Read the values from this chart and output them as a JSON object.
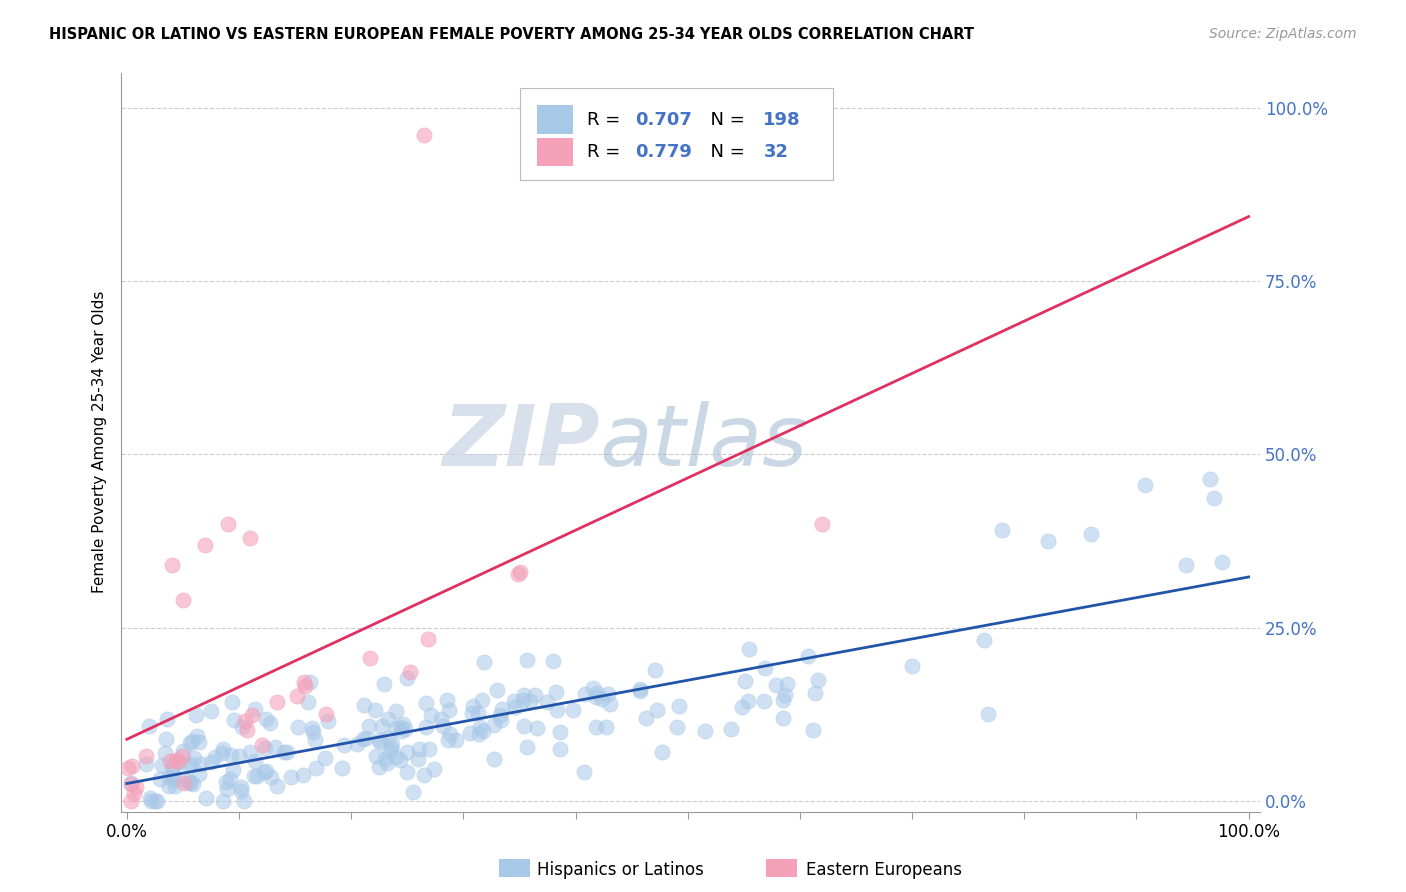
{
  "title": "HISPANIC OR LATINO VS EASTERN EUROPEAN FEMALE POVERTY AMONG 25-34 YEAR OLDS CORRELATION CHART",
  "source": "Source: ZipAtlas.com",
  "ylabel": "Female Poverty Among 25-34 Year Olds",
  "watermark_zip": "ZIP",
  "watermark_atlas": "atlas",
  "blue_R": 0.707,
  "blue_N": 198,
  "pink_R": 0.779,
  "pink_N": 32,
  "blue_color": "#a8c8e8",
  "pink_color": "#f4a0b8",
  "blue_line_color": "#2255aa",
  "pink_line_color": "#e03060",
  "axis_label_color": "#4472c4",
  "ytick_labels": [
    "0.0%",
    "25.0%",
    "50.0%",
    "75.0%",
    "100.0%"
  ],
  "ytick_values": [
    0.0,
    0.25,
    0.5,
    0.75,
    1.0
  ],
  "xtick_values": [
    0.0,
    0.1,
    0.2,
    0.3,
    0.4,
    0.5,
    0.6,
    0.7,
    0.8,
    0.9,
    1.0
  ],
  "xtick_labels": [
    "0.0%",
    "",
    "",
    "",
    "",
    "",
    "",
    "",
    "",
    "",
    "100.0%"
  ],
  "legend_label_blue": "Hispanics or Latinos",
  "legend_label_pink": "Eastern Europeans",
  "background_color": "#ffffff",
  "grid_color": "#cccccc",
  "blue_seed": 12,
  "pink_seed": 99
}
